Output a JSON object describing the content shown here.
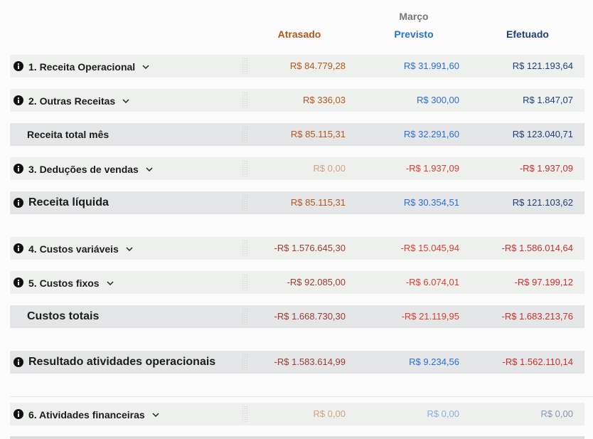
{
  "header": {
    "month": "Março",
    "columns": [
      "Atrasado",
      "Previsto",
      "Efetuado"
    ]
  },
  "rows": [
    {
      "label": "1. Receita Operacional",
      "values": [
        "R$ 84.779,28",
        "R$ 31.991,60",
        "R$ 121.193,64"
      ]
    },
    {
      "label": "2. Outras Receitas",
      "values": [
        "R$ 336,03",
        "R$ 300,00",
        "R$ 1.847,07"
      ]
    },
    {
      "label": "Receita total mês",
      "values": [
        "R$ 85.115,31",
        "R$ 32.291,60",
        "R$ 123.040,71"
      ]
    },
    {
      "label": "3. Deduções de vendas",
      "values": [
        "R$ 0,00",
        "-R$ 1.937,09",
        "-R$ 1.937,09"
      ]
    },
    {
      "label": "Receita líquida",
      "values": [
        "R$ 85.115,31",
        "R$ 30.354,51",
        "R$ 121.103,62"
      ]
    },
    {
      "label": "4. Custos variáveis",
      "values": [
        "-R$ 1.576.645,30",
        "-R$ 15.045,94",
        "-R$ 1.586.014,64"
      ]
    },
    {
      "label": "5. Custos fixos",
      "values": [
        "-R$ 92.085,00",
        "-R$ 6.074,01",
        "-R$ 97.199,12"
      ]
    },
    {
      "label": "Custos totais",
      "values": [
        "-R$ 1.668.730,30",
        "-R$ 21.119,95",
        "-R$ 1.683.213,76"
      ]
    },
    {
      "label": "Resultado atividades operacionais",
      "values": [
        "-R$ 1.583.614,99",
        "R$ 9.234,56",
        "-R$ 1.562.110,14"
      ]
    },
    {
      "label": "6. Atividades financeiras",
      "values": [
        "R$ 0,00",
        "R$ 0,00",
        "R$ 0,00"
      ]
    }
  ]
}
